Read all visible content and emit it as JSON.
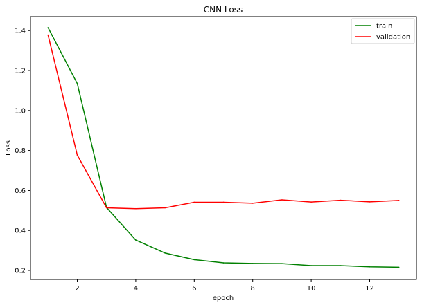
{
  "chart_data": {
    "type": "line",
    "title": "CNN Loss",
    "xlabel": "epoch",
    "ylabel": "Loss",
    "x": [
      1,
      2,
      3,
      4,
      5,
      6,
      7,
      8,
      9,
      10,
      11,
      12,
      13
    ],
    "xlim": [
      0.4,
      13.6
    ],
    "ylim": [
      0.155,
      1.47
    ],
    "xticks": [
      2,
      4,
      6,
      8,
      10,
      12
    ],
    "yticks": [
      0.2,
      0.4,
      0.6,
      0.8,
      1.0,
      1.2,
      1.4
    ],
    "xtick_labels": [
      "2",
      "4",
      "6",
      "8",
      "10",
      "12"
    ],
    "ytick_labels": [
      "0.2",
      "0.4",
      "0.6",
      "0.8",
      "1.0",
      "1.2",
      "1.4"
    ],
    "grid": false,
    "legend_position": "top-right",
    "series": [
      {
        "name": "train",
        "color": "#008000",
        "values": [
          1.415,
          1.135,
          0.515,
          0.352,
          0.287,
          0.254,
          0.238,
          0.235,
          0.234,
          0.224,
          0.224,
          0.218,
          0.216
        ]
      },
      {
        "name": "validation",
        "color": "#ff0000",
        "values": [
          1.378,
          0.777,
          0.513,
          0.509,
          0.513,
          0.541,
          0.541,
          0.536,
          0.553,
          0.542,
          0.551,
          0.543,
          0.55
        ]
      }
    ]
  }
}
